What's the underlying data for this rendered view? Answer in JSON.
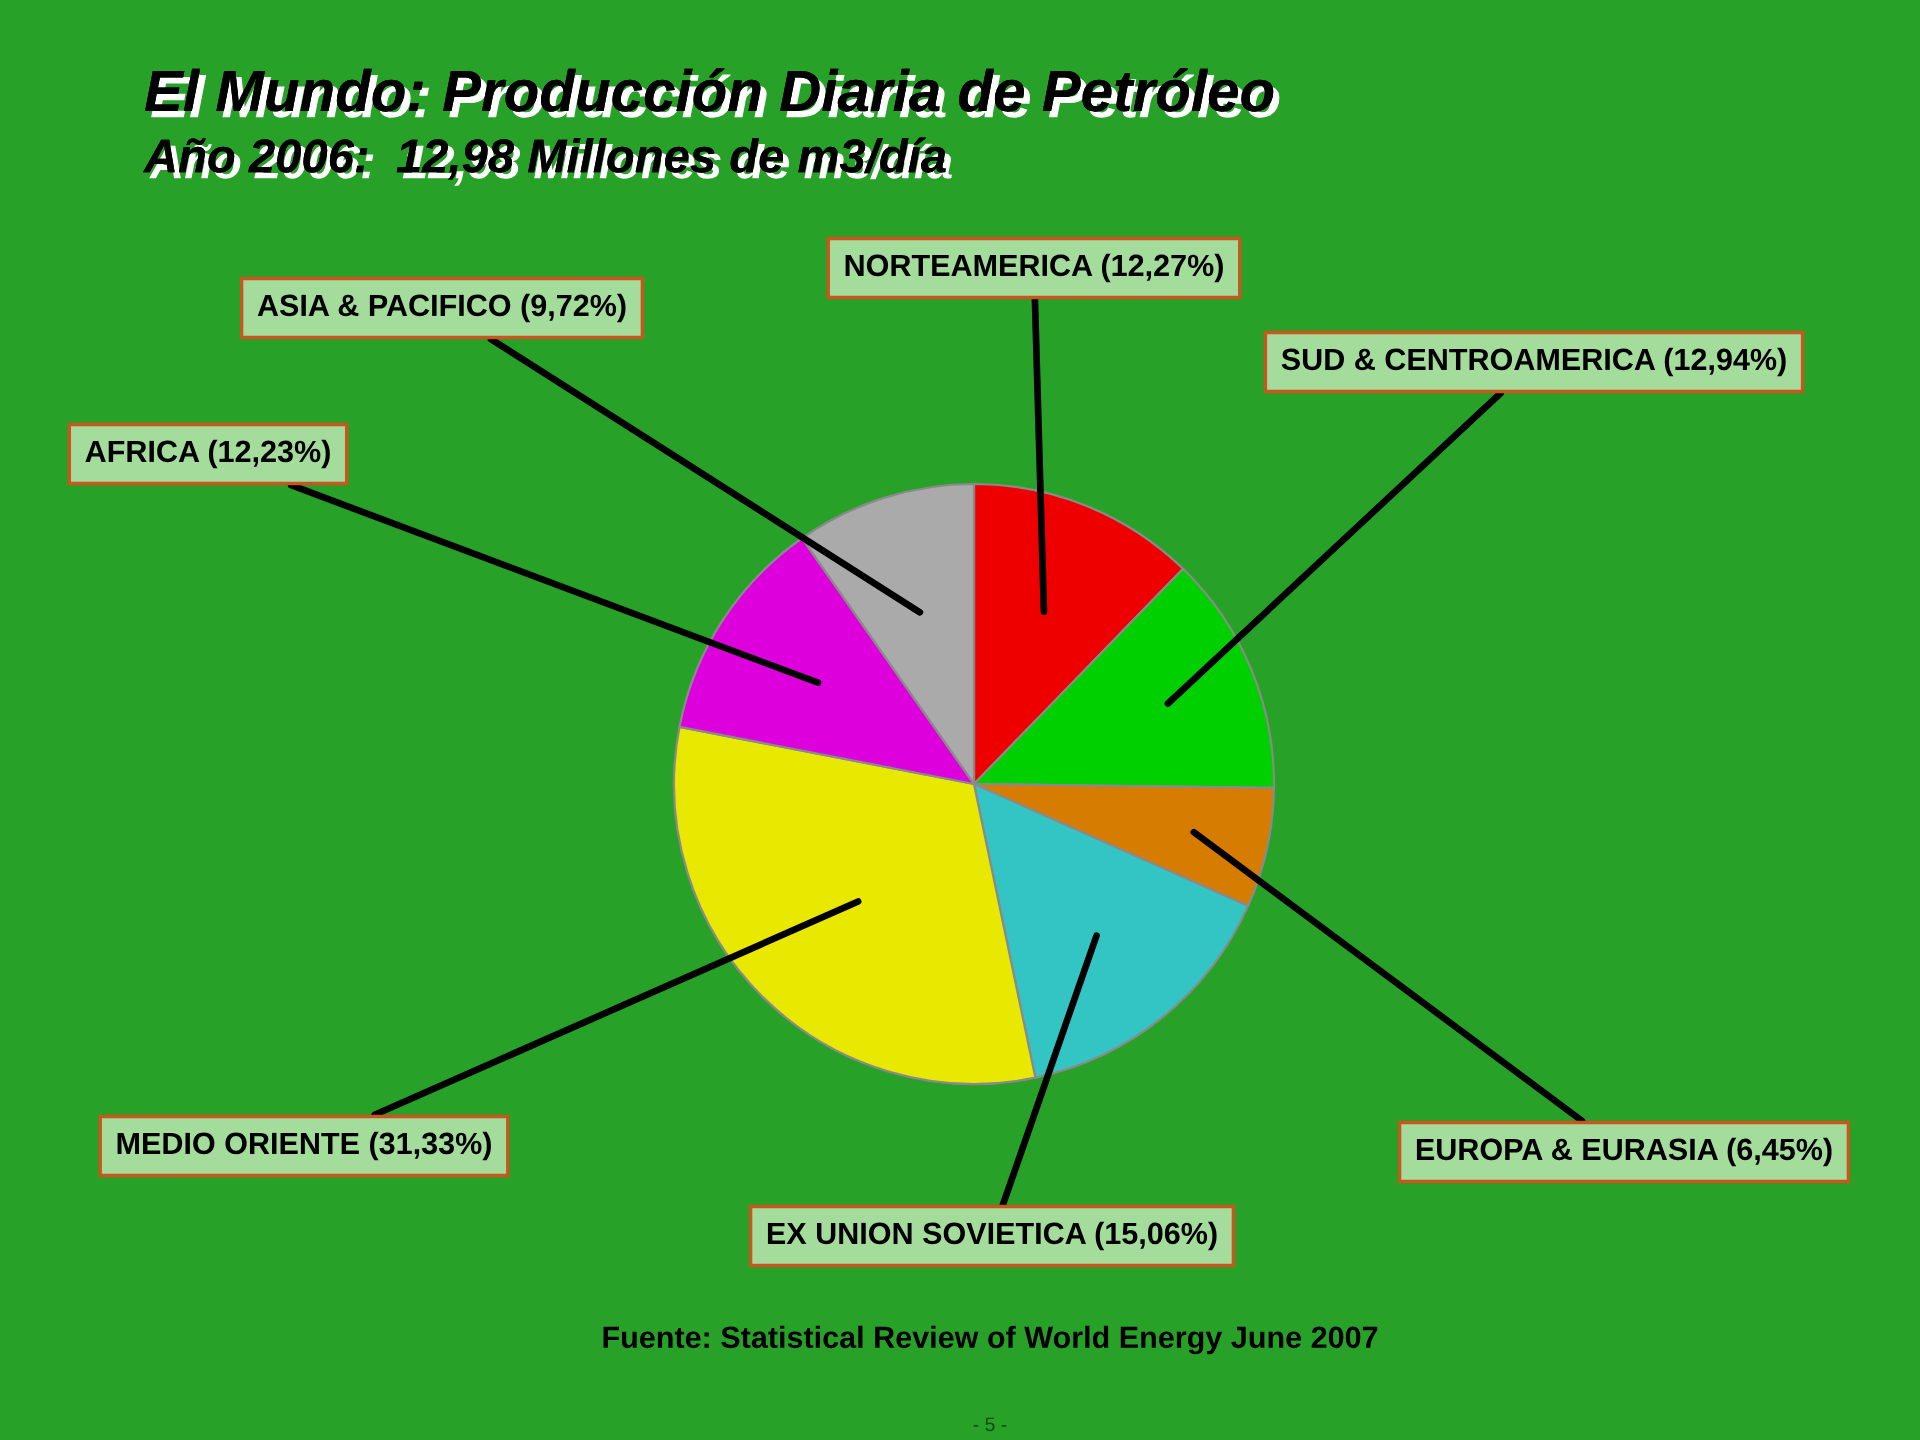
{
  "chart_data": {
    "type": "pie",
    "title": "El Mundo: Producción Diaria de Petróleo",
    "subtitle": "Año 2006:  12,98 Millones de m3/día",
    "categories": [
      "NORTEAMERICA (12,27%)",
      "SUD & CENTROAMERICA (12,94%)",
      "EUROPA & EURASIA (6,45%)",
      "EX UNION SOVIETICA (15,06%)",
      "MEDIO ORIENTE (31,33%)",
      "AFRICA (12,23%)",
      "ASIA & PACIFICO (9,72%)"
    ],
    "values": [
      12.27,
      12.94,
      6.45,
      15.06,
      31.33,
      12.23,
      9.72
    ],
    "colors": [
      "#ee0000",
      "#00d000",
      "#d67c00",
      "#33c4c4",
      "#e8e800",
      "#dd00dd",
      "#aaaaaa"
    ],
    "annotations": [
      "Fuente: Statistical Review of World Energy June 2007",
      "- 5 -"
    ]
  }
}
